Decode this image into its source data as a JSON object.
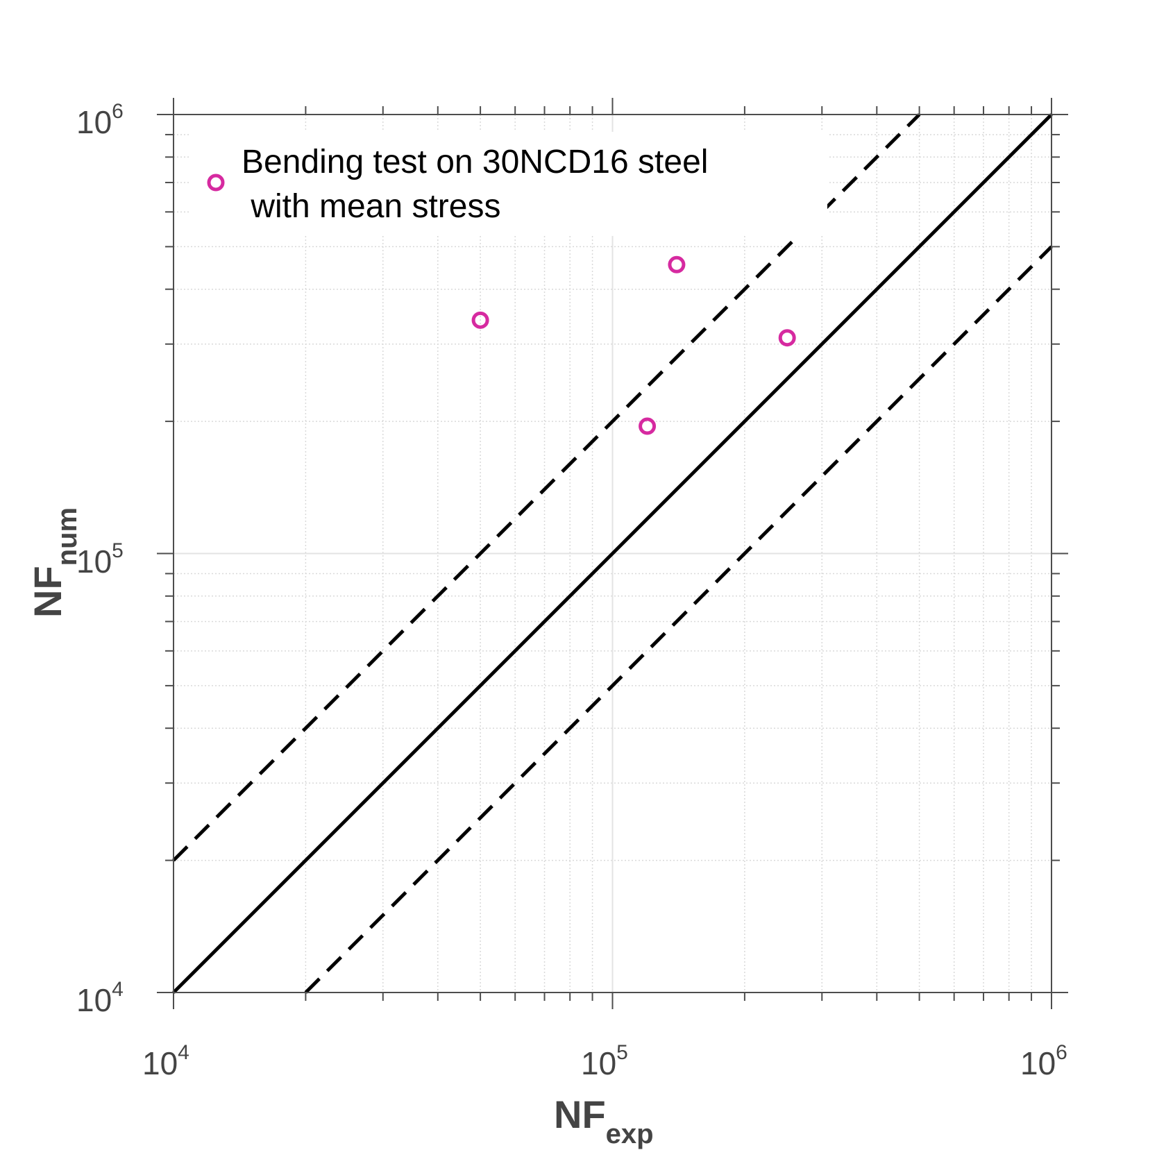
{
  "chart_data": {
    "type": "scatter",
    "xlabel": {
      "main": "NF",
      "sub": "exp"
    },
    "ylabel": {
      "main": "NF",
      "sub": "num"
    },
    "xscale": "log",
    "yscale": "log",
    "xlim": [
      10000,
      1000000
    ],
    "ylim": [
      10000,
      1000000
    ],
    "grid": true,
    "tick_labels": {
      "x": [
        {
          "base": "10",
          "exp": "4"
        },
        {
          "base": "10",
          "exp": "5"
        },
        {
          "base": "10",
          "exp": "6"
        }
      ],
      "y": [
        {
          "base": "10",
          "exp": "4"
        },
        {
          "base": "10",
          "exp": "5"
        },
        {
          "base": "10",
          "exp": "6"
        }
      ]
    },
    "legend": {
      "position": "top-left",
      "entries": [
        {
          "label_line1": "Bending test on 30NCD16 steel",
          "label_line2": " with mean stress",
          "marker": "circle-open",
          "color": "#d62aa0"
        }
      ]
    },
    "series": [
      {
        "name": "Bending test on 30NCD16 steel with mean stress",
        "marker": "circle-open",
        "color": "#d62aa0",
        "x": [
          50000,
          120000,
          140000,
          250000
        ],
        "y": [
          340000,
          195000,
          455000,
          310000
        ]
      }
    ],
    "reference_lines": [
      {
        "style": "solid",
        "color": "#000000",
        "factor": 1
      },
      {
        "style": "dashed",
        "color": "#000000",
        "factor": 2
      },
      {
        "style": "dashed",
        "color": "#000000",
        "factor": 0.5
      }
    ]
  }
}
